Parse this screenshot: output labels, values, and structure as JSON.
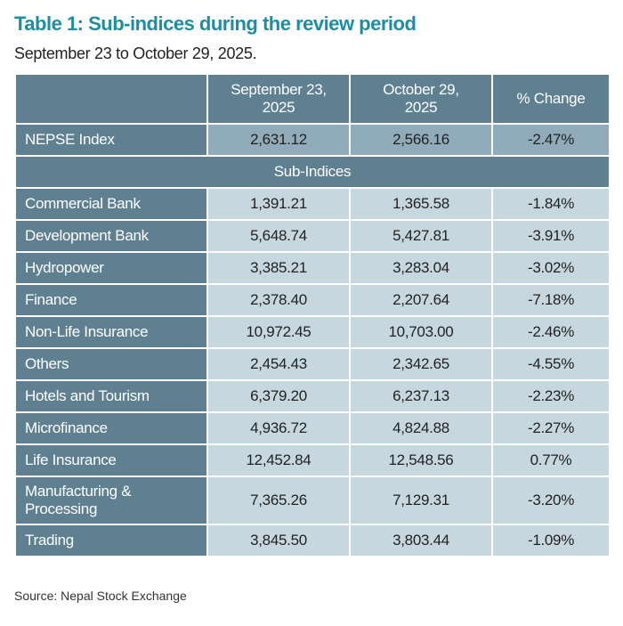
{
  "title": "Table 1: Sub-indices during the review period",
  "subtitle": "September 23 to October 29, 2025.",
  "table": {
    "header": [
      "September 23, 2025",
      "October 29, 2025",
      "% Change"
    ],
    "index_row": [
      "NEPSE Index",
      "2,631.12",
      "2,566.16",
      "-2.47%"
    ],
    "section": "Sub-Indices",
    "rows": [
      [
        "Commercial Bank",
        "1,391.21",
        "1,365.58",
        "-1.84%"
      ],
      [
        "Development Bank",
        "5,648.74",
        "5,427.81",
        "-3.91%"
      ],
      [
        "Hydropower",
        "3,385.21",
        "3,283.04",
        "-3.02%"
      ],
      [
        "Finance",
        "2,378.40",
        "2,207.64",
        "-7.18%"
      ],
      [
        "Non-Life Insurance",
        "10,972.45",
        "10,703.00",
        "-2.46%"
      ],
      [
        "Others",
        "2,454.43",
        "2,342.65",
        "-4.55%"
      ],
      [
        "Hotels and Tourism",
        "6,379.20",
        "6,237.13",
        "-2.23%"
      ],
      [
        "Microfinance",
        "4,936.72",
        "4,824.88",
        "-2.27%"
      ],
      [
        "Life Insurance",
        "12,452.84",
        "12,548.56",
        "0.77%"
      ],
      [
        "Manufacturing & Processing",
        "7,365.26",
        "7,129.31",
        "-3.20%"
      ],
      [
        "Trading",
        "3,845.50",
        "3,803.44",
        "-1.09%"
      ]
    ]
  },
  "source": "Source: Nepal Stock Exchange"
}
